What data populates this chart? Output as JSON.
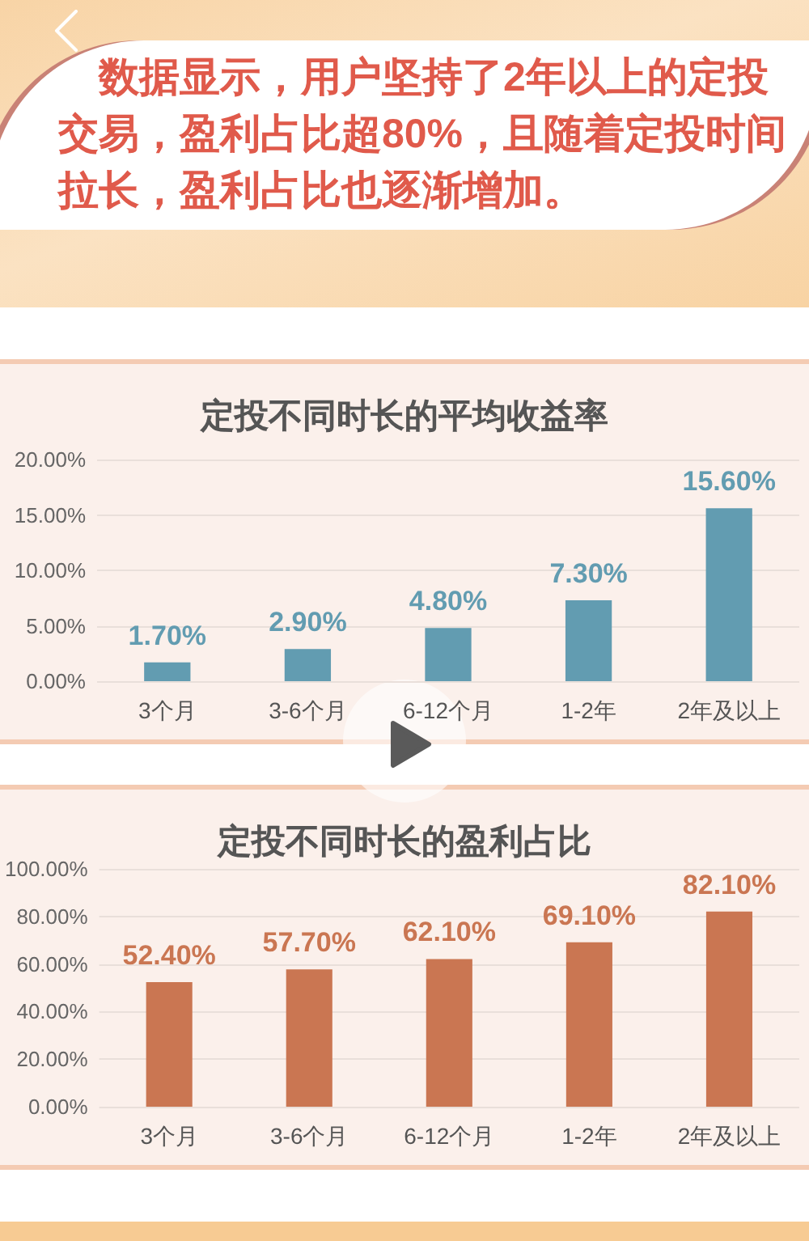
{
  "chart_data": [
    {
      "type": "other",
      "annotations": [
        "数据显示，用户坚持了2年以上的定投交易，盈利占比超80%，且随着定投时间拉长，盈利占比也逐渐增加。"
      ]
    },
    {
      "type": "bar",
      "title": "定投不同时长的平均收益率",
      "categories": [
        "3个月",
        "3-6个月",
        "6-12个月",
        "1-2年",
        "2年及以上"
      ],
      "values": [
        1.7,
        2.9,
        4.8,
        7.3,
        15.6
      ],
      "color": "#629cb1",
      "value_labels": [
        "1.70%",
        "2.90%",
        "4.80%",
        "7.30%",
        "15.60%"
      ],
      "ylim": [
        0,
        20
      ],
      "yticks": [
        {
          "value": 0,
          "label": "0.00%"
        },
        {
          "value": 5,
          "label": "5.00%"
        },
        {
          "value": 10,
          "label": "10.00%"
        },
        {
          "value": 15,
          "label": "15.00%"
        },
        {
          "value": 20,
          "label": "20.00%"
        }
      ],
      "grid": "y"
    },
    {
      "type": "bar",
      "title": "定投不同时长的盈利占比",
      "categories": [
        "3个月",
        "3-6个月",
        "6-12个月",
        "1-2年",
        "2年及以上"
      ],
      "values": [
        52.4,
        57.7,
        62.1,
        69.1,
        82.1
      ],
      "color": "#ca7652",
      "value_labels": [
        "52.40%",
        "57.70%",
        "62.10%",
        "69.10%",
        "82.10%"
      ],
      "ylim": [
        0,
        100
      ],
      "yticks": [
        {
          "value": 0,
          "label": "0.00%"
        },
        {
          "value": 20,
          "label": "20.00%"
        },
        {
          "value": 40,
          "label": "40.00%"
        },
        {
          "value": 60,
          "label": "60.00%"
        },
        {
          "value": 80,
          "label": "80.00%"
        },
        {
          "value": 100,
          "label": "100.00%"
        }
      ],
      "grid": "y"
    }
  ]
}
